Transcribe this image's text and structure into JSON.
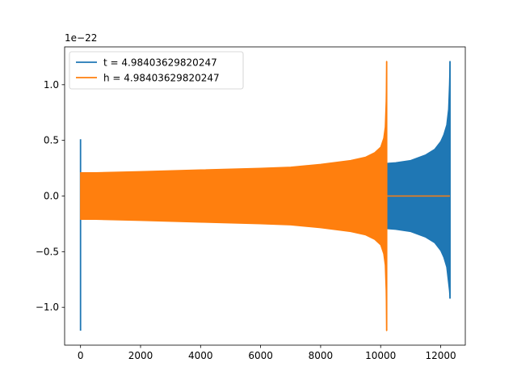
{
  "chart_data": {
    "type": "line",
    "title": "",
    "xlabel": "",
    "ylabel": "",
    "offset_text": "1e−22",
    "xlim": [
      -530,
      12820
    ],
    "ylim": [
      -1.34,
      1.34
    ],
    "xticks": [
      {
        "value": 0,
        "label": "0"
      },
      {
        "value": 2000,
        "label": "2000"
      },
      {
        "value": 4000,
        "label": "4000"
      },
      {
        "value": 6000,
        "label": "6000"
      },
      {
        "value": 8000,
        "label": "8000"
      },
      {
        "value": 10000,
        "label": "10000"
      },
      {
        "value": 12000,
        "label": "12000"
      }
    ],
    "yticks": [
      {
        "value": -1.0,
        "label": "−1.0"
      },
      {
        "value": -0.5,
        "label": "−0.5"
      },
      {
        "value": 0.0,
        "label": "0.0"
      },
      {
        "value": 0.5,
        "label": "0.5"
      },
      {
        "value": 1.0,
        "label": "1.0"
      }
    ],
    "grid": false,
    "legend_position": "upper-left",
    "series": [
      {
        "name": "t = 4.98403629820247",
        "color": "#1f77b4",
        "start_spike": {
          "x": 0,
          "ymin": -1.21,
          "ymax": 0.51
        },
        "envelope_x": [
          0,
          500,
          2000,
          4000,
          6000,
          8000,
          9000,
          10000,
          10500,
          11000,
          11500,
          11800,
          12000,
          12100,
          12200,
          12260,
          12290,
          12310
        ],
        "envelope_upper": [
          0.19,
          0.2,
          0.21,
          0.225,
          0.24,
          0.265,
          0.275,
          0.29,
          0.3,
          0.32,
          0.37,
          0.42,
          0.49,
          0.55,
          0.64,
          0.78,
          1.0,
          1.21
        ],
        "envelope_lower": [
          -0.19,
          -0.2,
          -0.21,
          -0.225,
          -0.24,
          -0.265,
          -0.275,
          -0.29,
          -0.3,
          -0.32,
          -0.37,
          -0.42,
          -0.49,
          -0.55,
          -0.64,
          -0.78,
          -0.85,
          -0.92
        ],
        "end_x": 12310
      },
      {
        "name": "h = 4.98403629820247",
        "color": "#ff7f0e",
        "envelope_x": [
          0,
          500,
          2000,
          4000,
          6000,
          7000,
          8000,
          9000,
          9500,
          9800,
          10000,
          10100,
          10150,
          10180,
          10200
        ],
        "envelope_upper": [
          0.21,
          0.21,
          0.22,
          0.235,
          0.25,
          0.26,
          0.285,
          0.32,
          0.35,
          0.39,
          0.44,
          0.52,
          0.62,
          0.85,
          1.21
        ],
        "envelope_lower": [
          -0.21,
          -0.21,
          -0.22,
          -0.235,
          -0.25,
          -0.26,
          -0.285,
          -0.32,
          -0.35,
          -0.39,
          -0.44,
          -0.52,
          -0.62,
          -0.85,
          -1.21
        ],
        "flat_segment": {
          "x_start": 10200,
          "x_end": 12310,
          "y": 0.0
        }
      }
    ]
  }
}
